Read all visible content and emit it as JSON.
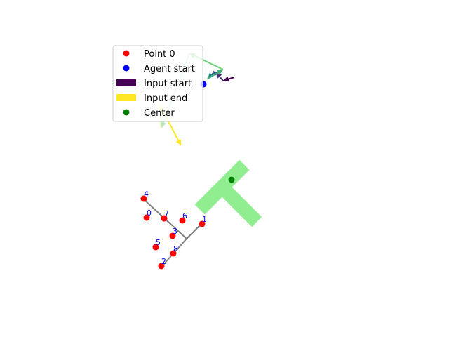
{
  "legend": {
    "items": [
      {
        "label": "Point 0",
        "marker": "dot",
        "color": "#ff0000"
      },
      {
        "label": "Agent start",
        "marker": "dot",
        "color": "#0000ff"
      },
      {
        "label": "Input start",
        "marker": "bar",
        "color": "#440154"
      },
      {
        "label": "Input end",
        "marker": "bar",
        "color": "#fde725"
      },
      {
        "label": "Center",
        "marker": "dot",
        "color": "#008000"
      }
    ]
  },
  "points": [
    {
      "label": "0"
    },
    {
      "label": "1"
    },
    {
      "label": "2"
    },
    {
      "label": "3"
    },
    {
      "label": "4"
    },
    {
      "label": "5"
    },
    {
      "label": "6"
    },
    {
      "label": "7"
    },
    {
      "label": "8"
    }
  ],
  "colors": {
    "point": "#ff0000",
    "agent": "#0000ff",
    "center": "#008000",
    "shape": "#90ee90",
    "skeleton": "#808080",
    "label": "#0000ff",
    "input_colormap": [
      "#440154",
      "#3b528b",
      "#21918c",
      "#5ec962",
      "#c8f0e0",
      "#fde725"
    ]
  }
}
